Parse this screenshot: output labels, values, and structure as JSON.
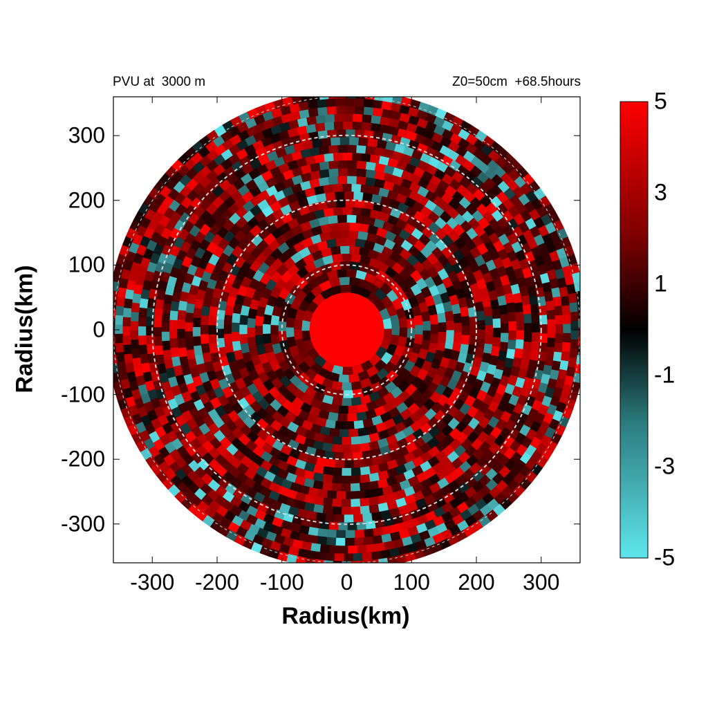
{
  "title_left": "PVU at  3000 m",
  "title_right": "Z0=50cm  +68.5hours",
  "chart_data": {
    "type": "heatmap",
    "title": "PVU at  3000 m",
    "subtitle": "Z0=50cm  +68.5hours",
    "xlabel": "Radius(km)",
    "ylabel": "Radius(km)",
    "xlim": [
      -360,
      360
    ],
    "ylim": [
      -360,
      360
    ],
    "xticks": [
      -300,
      -200,
      -100,
      0,
      100,
      200,
      300
    ],
    "yticks": [
      300,
      200,
      100,
      0,
      -100,
      -200,
      -300
    ],
    "domain_radius_km": 360,
    "range_rings_km": [
      100,
      200,
      300
    ],
    "colorbar": {
      "range": [
        -5,
        5
      ],
      "ticks": [
        5,
        3,
        1,
        -1,
        -3,
        -5
      ],
      "colors": {
        "negative": "#5ee6ec",
        "zero": "#000000",
        "positive": "#ff0000"
      }
    },
    "eye_core": {
      "center": [
        0,
        0
      ],
      "radius_km": 55,
      "value": 5
    },
    "field_summary": "mixed positive (red) and negative (cyan) PV anomalies in spiral bands around a strongly positive core"
  }
}
